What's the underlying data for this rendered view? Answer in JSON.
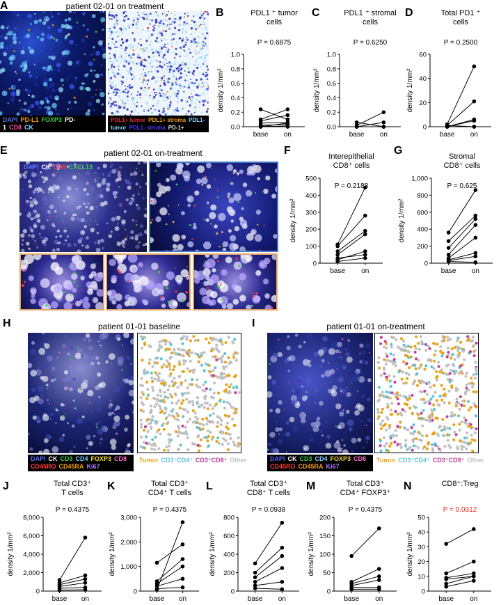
{
  "panels": {
    "A": {
      "letter": "A",
      "title": "patient 02-01 on treatment",
      "legend1": [
        {
          "t": "DAPI",
          "c": "#5a6cff"
        },
        {
          "t": "PD-L1",
          "c": "#f39c12"
        },
        {
          "t": "FOXP3",
          "c": "#3ecf4a"
        },
        {
          "t": "PD-1",
          "c": "#ffffff"
        },
        {
          "t": "CD8",
          "c": "#ff4fa0"
        },
        {
          "t": "CK",
          "c": "#7fd3ff"
        }
      ],
      "legend2": [
        {
          "t": "PDL1+ tumor",
          "c": "#e03030"
        },
        {
          "t": "PDL1+ stroma",
          "c": "#f39c12"
        },
        {
          "t": "PDL1- tumor",
          "c": "#8fd0ff"
        },
        {
          "t": "PDL1- stroma",
          "c": "#4b3bff"
        },
        {
          "t": "PD-1+",
          "c": "#e0e0e0"
        }
      ]
    },
    "E": {
      "letter": "E",
      "title": "patient 02-01 on-treatment",
      "legend": [
        {
          "t": "DAPI",
          "c": "#5a6cff"
        },
        {
          "t": "CK",
          "c": "#ffffff"
        },
        {
          "t": "CD8",
          "c": "#ff3b3b"
        },
        {
          "t": "CXCL13",
          "c": "#3ecf4a"
        }
      ]
    },
    "H": {
      "letter": "H",
      "title": "patient 01-01 baseline"
    },
    "I": {
      "letter": "I",
      "title": "patient 01-01 on-treatment"
    },
    "mif_legend": {
      "row1": [
        {
          "t": "DAPI",
          "c": "#5a6cff"
        },
        {
          "t": "CK",
          "c": "#ffffff"
        },
        {
          "t": "CD3",
          "c": "#3ecf4a"
        },
        {
          "t": "CD4",
          "c": "#7fd3ff"
        },
        {
          "t": "FOXP3",
          "c": "#f5d742"
        },
        {
          "t": "CD8",
          "c": "#ff6fd0"
        }
      ],
      "row2": [
        {
          "t": "CD45RO",
          "c": "#ff3b3b"
        },
        {
          "t": "CD45RA",
          "c": "#f39c12"
        },
        {
          "t": "Ki67",
          "c": "#b07cff"
        }
      ]
    },
    "seg_legend": [
      {
        "t": "Tumor",
        "c": "#e8a317"
      },
      {
        "t": "CD3⁺CD4⁺",
        "c": "#5bc4d8"
      },
      {
        "t": "CD3⁺CD8⁺",
        "c": "#c040a0"
      },
      {
        "t": "Other",
        "c": "#c0c0c0"
      }
    ]
  },
  "chart_data": [
    {
      "id": "B",
      "type": "scatter",
      "title": "PDL1 ⁺ tumor",
      "title2": "cells",
      "ylabel": "density 1/mm²",
      "pval": "P = 0.6875",
      "categories": [
        "base",
        "on"
      ],
      "ylim": [
        0,
        1.0
      ],
      "yticks": [
        "0.0",
        "0.2",
        "0.4",
        "0.6",
        "0.8",
        "1.0"
      ],
      "tickvals": [
        0,
        0.2,
        0.4,
        0.6,
        0.8,
        1.0
      ],
      "pairs": [
        [
          0.24,
          0.1
        ],
        [
          0.1,
          0.24
        ],
        [
          0.08,
          0.16
        ],
        [
          0.05,
          0.06
        ],
        [
          0.02,
          0.03
        ],
        [
          0.01,
          0.0
        ],
        [
          0.0,
          0.05
        ],
        [
          0.0,
          0.01
        ]
      ]
    },
    {
      "id": "C",
      "type": "scatter",
      "title": "PDL1 ⁺ stromal",
      "title2": "cells",
      "ylabel": "density 1/mm²",
      "pval": "P = 0.6250",
      "categories": [
        "base",
        "on"
      ],
      "ylim": [
        0,
        1.0
      ],
      "yticks": [
        "0.0",
        "0.2",
        "0.4",
        "0.6",
        "0.8",
        "1.0"
      ],
      "tickvals": [
        0,
        0.2,
        0.4,
        0.6,
        0.8,
        1.0
      ],
      "pairs": [
        [
          0.06,
          0.0
        ],
        [
          0.02,
          0.2
        ],
        [
          0.0,
          0.06
        ],
        [
          0.0,
          0.0
        ],
        [
          0.0,
          0.0
        ]
      ]
    },
    {
      "id": "D",
      "type": "scatter",
      "title": "Total PD1 ⁺",
      "title2": "cells",
      "ylabel": "density 1/mm²",
      "pval": "P = 0.2500",
      "categories": [
        "base",
        "on"
      ],
      "ylim": [
        0,
        60
      ],
      "yticks": [
        "0",
        "20",
        "40",
        "60"
      ],
      "tickvals": [
        0,
        20,
        40,
        60
      ],
      "pairs": [
        [
          2,
          50
        ],
        [
          1,
          21
        ],
        [
          0,
          6
        ],
        [
          0,
          5
        ],
        [
          0,
          0
        ],
        [
          1,
          0
        ]
      ]
    },
    {
      "id": "F",
      "type": "scatter",
      "title": "Interepithelial",
      "title2": "CD8⁺ cells",
      "ylabel": "density 1/mm²",
      "pval": "P = 0.2188",
      "categories": [
        "base",
        "on"
      ],
      "ylim": [
        0,
        500
      ],
      "yticks": [
        "0",
        "100",
        "200",
        "300",
        "400",
        "500"
      ],
      "tickvals": [
        0,
        100,
        200,
        300,
        400,
        500
      ],
      "pairs": [
        [
          110,
          445
        ],
        [
          100,
          280
        ],
        [
          70,
          190
        ],
        [
          50,
          170
        ],
        [
          30,
          50
        ],
        [
          20,
          70
        ],
        [
          10,
          30
        ]
      ]
    },
    {
      "id": "G",
      "type": "scatter",
      "title": "Stromal",
      "title2": "CD8⁺ cells",
      "ylabel": "density 1/mm²",
      "pval": "P = 0.625",
      "categories": [
        "base",
        "on"
      ],
      "ylim": [
        0,
        1000
      ],
      "yticks": [
        "0",
        "200",
        "400",
        "600",
        "800",
        "1,000"
      ],
      "tickvals": [
        0,
        200,
        400,
        600,
        800,
        1000
      ],
      "pairs": [
        [
          360,
          860
        ],
        [
          260,
          560
        ],
        [
          180,
          520
        ],
        [
          100,
          450
        ],
        [
          60,
          300
        ],
        [
          40,
          120
        ],
        [
          30,
          80
        ],
        [
          20,
          10
        ]
      ]
    },
    {
      "id": "J",
      "type": "scatter",
      "title": "Total CD3⁺",
      "title2": "T cells",
      "ylabel": "density 1/mm²",
      "pval": "P = 0.4375",
      "categories": [
        "base",
        "on"
      ],
      "ylim": [
        0,
        8000
      ],
      "yticks": [
        "0",
        "2,000",
        "4,000",
        "6,000",
        "8,000"
      ],
      "tickvals": [
        0,
        2000,
        4000,
        6000,
        8000
      ],
      "pairs": [
        [
          1200,
          5800
        ],
        [
          900,
          1700
        ],
        [
          700,
          1300
        ],
        [
          500,
          900
        ],
        [
          300,
          400
        ],
        [
          100,
          150
        ]
      ]
    },
    {
      "id": "K",
      "type": "scatter",
      "title": "Total CD3⁺",
      "title2": "CD4⁺ T cells",
      "ylabel": "density 1/mm²",
      "pval": "P = 0.4375",
      "categories": [
        "base",
        "on"
      ],
      "ylim": [
        0,
        3000
      ],
      "yticks": [
        "0",
        "1,000",
        "2,000",
        "3,000"
      ],
      "tickvals": [
        0,
        1000,
        2000,
        3000
      ],
      "pairs": [
        [
          1150,
          1900
        ],
        [
          400,
          1300
        ],
        [
          300,
          1000
        ],
        [
          200,
          500
        ],
        [
          100,
          150
        ],
        [
          50,
          2800
        ]
      ]
    },
    {
      "id": "L",
      "type": "scatter",
      "title": "Total CD3⁺",
      "title2": "CD8⁺ T cells",
      "ylabel": "density 1/mm²",
      "pval": "P = 0.0938",
      "categories": [
        "base",
        "on"
      ],
      "ylim": [
        0,
        800
      ],
      "yticks": [
        "0",
        "200",
        "400",
        "600",
        "800"
      ],
      "tickvals": [
        0,
        200,
        400,
        600,
        800
      ],
      "pairs": [
        [
          300,
          740
        ],
        [
          200,
          470
        ],
        [
          150,
          380
        ],
        [
          100,
          250
        ],
        [
          60,
          100
        ],
        [
          30,
          20
        ]
      ]
    },
    {
      "id": "M",
      "type": "scatter",
      "title": "Total CD3⁺",
      "title2": "CD4⁺ FOXP3⁺",
      "ylabel": "density 1/mm²",
      "pval": "P = 0.4375",
      "categories": [
        "base",
        "on"
      ],
      "ylim": [
        0,
        200
      ],
      "yticks": [
        "0",
        "50",
        "100",
        "150",
        "200"
      ],
      "tickvals": [
        0,
        50,
        100,
        150,
        200
      ],
      "pairs": [
        [
          95,
          170
        ],
        [
          25,
          60
        ],
        [
          20,
          40
        ],
        [
          15,
          30
        ],
        [
          10,
          10
        ],
        [
          5,
          5
        ]
      ]
    },
    {
      "id": "N",
      "type": "scatter",
      "title": "CD8⁺:Treg",
      "title2": "",
      "ylabel": "density 1/mm²",
      "pval": "P = 0.0312",
      "pval_color": "#e0201c",
      "categories": [
        "base",
        "on"
      ],
      "ylim": [
        0,
        50
      ],
      "yticks": [
        "0",
        "10",
        "20",
        "30",
        "40",
        "50"
      ],
      "tickvals": [
        0,
        10,
        20,
        30,
        40,
        50
      ],
      "pairs": [
        [
          32,
          42
        ],
        [
          12,
          20
        ],
        [
          9,
          12
        ],
        [
          8,
          10
        ],
        [
          5,
          10
        ],
        [
          3,
          7
        ]
      ]
    }
  ]
}
